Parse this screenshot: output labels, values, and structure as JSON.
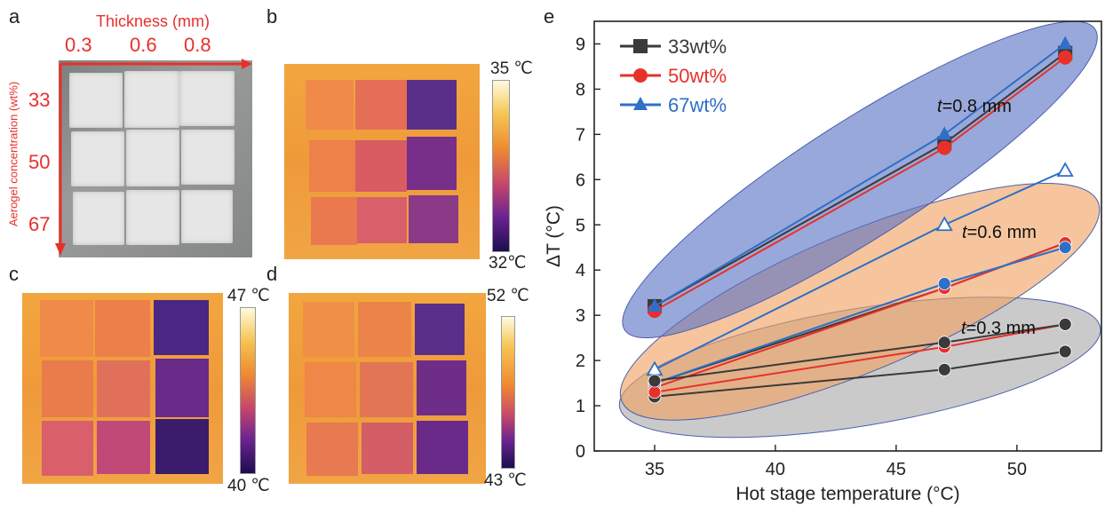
{
  "panels": {
    "a": {
      "letter": "a",
      "thickness_title": "Thickness (mm)",
      "thickness_values": [
        "0.3",
        "0.6",
        "0.8"
      ],
      "concentration_title": "Aerogel concentration (wt%)",
      "concentration_values": [
        "33",
        "50",
        "67"
      ]
    },
    "b": {
      "letter": "b",
      "cb_max": "35 ℃",
      "cb_min": "32℃"
    },
    "c": {
      "letter": "c",
      "cb_max": "47 ℃",
      "cb_min": "40 ℃"
    },
    "d": {
      "letter": "d",
      "cb_max": "52 ℃",
      "cb_min": "43  ℃"
    },
    "e": {
      "letter": "e"
    }
  },
  "colors": {
    "label_red": "#e8302b",
    "s33": "#3a3a3a",
    "s50": "#e8302b",
    "s67": "#2e6fc7",
    "blue_ellipse": "#5a73c4",
    "orange_ellipse": "#f0a261",
    "gray_ellipse": "#a9a9a9"
  },
  "chart_data": {
    "type": "line",
    "xlabel": "Hot stage temperature (°C)",
    "ylabel": "ΔT (°C)",
    "xlim": [
      32.5,
      53.5
    ],
    "ylim": [
      0,
      9.5
    ],
    "xticks": [
      35,
      40,
      45,
      50
    ],
    "yticks": [
      0,
      1,
      2,
      3,
      4,
      5,
      6,
      7,
      8,
      9
    ],
    "legend": [
      {
        "name": "33wt%",
        "color": "#3a3a3a",
        "marker": "square"
      },
      {
        "name": "50wt%",
        "color": "#e8302b",
        "marker": "circle"
      },
      {
        "name": "67wt%",
        "color": "#2e6fc7",
        "marker": "triangle"
      }
    ],
    "legend_position": "top-left",
    "annotations": [
      {
        "text_italic": "t",
        "text": "=0.8 mm",
        "group": "0.8"
      },
      {
        "text_italic": "t",
        "text": "=0.6 mm",
        "group": "0.6"
      },
      {
        "text_italic": "t",
        "text": "=0.3 mm",
        "group": "0.3"
      }
    ],
    "series": [
      {
        "name": "33wt%",
        "thickness": "0.8 mm",
        "x": [
          35,
          47,
          52
        ],
        "y": [
          3.2,
          6.8,
          8.8
        ]
      },
      {
        "name": "50wt%",
        "thickness": "0.8 mm",
        "x": [
          35,
          47,
          52
        ],
        "y": [
          3.1,
          6.7,
          8.7
        ]
      },
      {
        "name": "67wt%",
        "thickness": "0.8 mm",
        "x": [
          35,
          47,
          52
        ],
        "y": [
          3.2,
          7.0,
          9.0
        ]
      },
      {
        "name": "33wt%",
        "thickness": "0.6 mm",
        "x": [
          35,
          47,
          52
        ],
        "y": [
          1.5,
          3.6,
          4.6
        ]
      },
      {
        "name": "50wt%",
        "thickness": "0.6 mm",
        "x": [
          35,
          47,
          52
        ],
        "y": [
          1.4,
          3.6,
          4.6
        ]
      },
      {
        "name": "67wt%",
        "thickness": "0.6 mm",
        "x": [
          35,
          47,
          52
        ],
        "y": [
          1.8,
          5.0,
          6.2
        ]
      },
      {
        "name": "67wt%",
        "thickness": "0.6 mm",
        "x": [
          35,
          47,
          52
        ],
        "y": [
          1.5,
          3.7,
          4.5
        ]
      },
      {
        "name": "33wt%",
        "thickness": "0.3 mm",
        "x": [
          35,
          47,
          52
        ],
        "y": [
          1.2,
          1.8,
          2.2
        ]
      },
      {
        "name": "50wt%",
        "thickness": "0.3 mm",
        "x": [
          35,
          47,
          52
        ],
        "y": [
          1.3,
          2.3,
          2.8
        ]
      },
      {
        "name": "33wt%",
        "thickness": "0.3 mm",
        "x": [
          35,
          47,
          52
        ],
        "y": [
          1.55,
          2.4,
          2.8
        ]
      }
    ]
  }
}
